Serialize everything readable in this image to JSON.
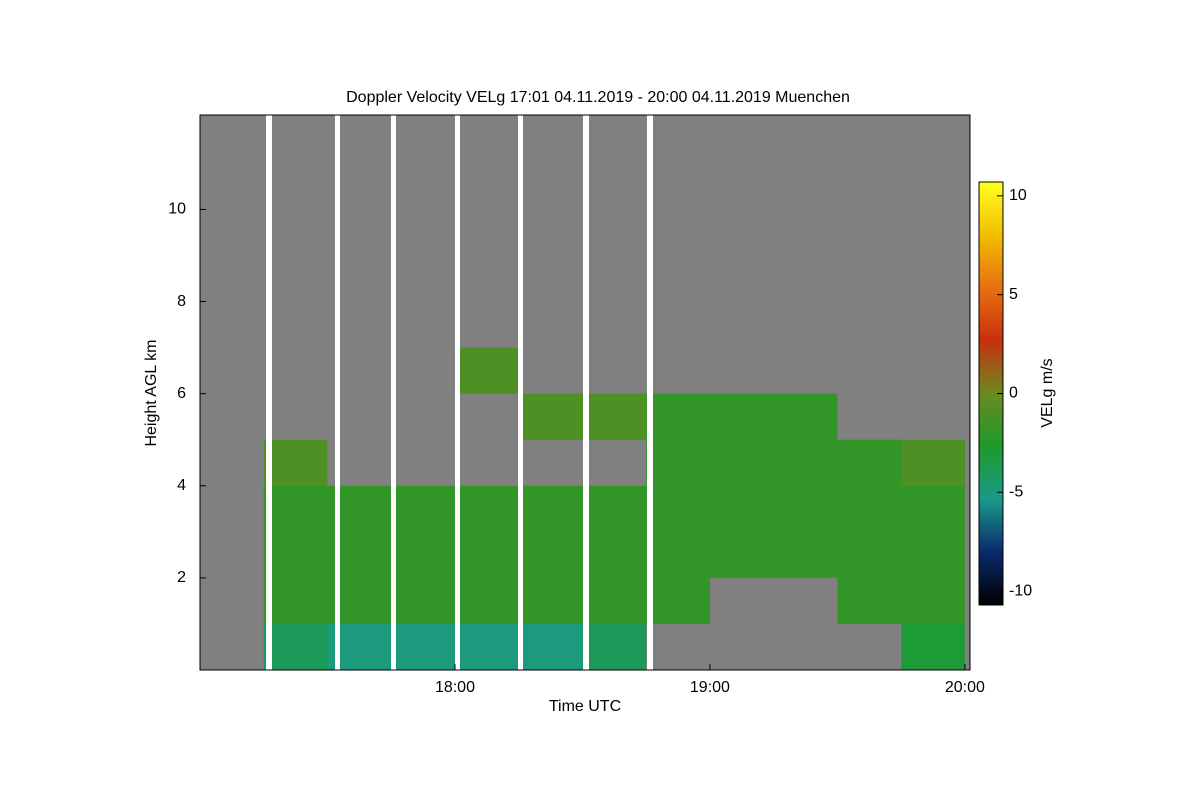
{
  "chart_data": {
    "type": "heatmap",
    "title": "Doppler Velocity VELg   17:01 04.11.2019 - 20:00 04.11.2019 Muenchen",
    "xlabel": "Time UTC",
    "ylabel": "Height AGL km",
    "colorbar_label": "VELg m/s",
    "xlim": [
      17.0,
      20.02
    ],
    "xticks": [
      {
        "value": 18,
        "label": "18:00"
      },
      {
        "value": 19,
        "label": "19:00"
      },
      {
        "value": 20,
        "label": "20:00"
      }
    ],
    "ylim": [
      0,
      12.05
    ],
    "yticks": [
      2,
      4,
      6,
      8,
      10
    ],
    "clim": [
      -10.7,
      10.7
    ],
    "cticks": [
      -10,
      -5,
      0,
      5,
      10
    ],
    "colors": [
      "#000000",
      "#0a2a6e",
      "#1a9a8a",
      "#1e9a2a",
      "#6a8a20",
      "#c83010",
      "#e87010",
      "#f0c000",
      "#ffff20"
    ],
    "missing_color": "#808080",
    "x_edges": [
      17.0,
      17.25,
      17.5,
      17.75,
      18.0,
      18.25,
      18.5,
      18.75,
      19.0,
      19.25,
      19.5,
      19.75,
      20.0
    ],
    "y_edges": [
      0,
      1,
      2,
      3,
      4,
      5,
      6,
      7,
      8,
      9,
      10,
      11,
      12
    ],
    "z": [
      [
        null,
        -4,
        -5,
        -5,
        -5,
        -5,
        -4,
        null,
        null,
        null,
        null,
        -3
      ],
      [
        null,
        -2,
        -2,
        -2,
        -2,
        -2,
        -2,
        -2,
        null,
        null,
        -2,
        -2
      ],
      [
        null,
        -2,
        -2,
        -2,
        -2,
        -2,
        -2,
        -2,
        -2,
        -2,
        -2,
        -2
      ],
      [
        null,
        -2,
        -2,
        -2,
        -2,
        -2,
        -2,
        -2,
        -2,
        -2,
        -2,
        -2
      ],
      [
        null,
        -1,
        null,
        null,
        null,
        null,
        null,
        -2,
        -2,
        -2,
        -2,
        -1
      ],
      [
        null,
        null,
        null,
        null,
        null,
        -1,
        -1,
        -2,
        -2,
        -2,
        null,
        null
      ],
      [
        null,
        null,
        null,
        null,
        -1,
        null,
        null,
        null,
        null,
        null,
        null,
        null
      ],
      [
        null,
        null,
        null,
        null,
        null,
        null,
        null,
        null,
        null,
        null,
        null,
        null
      ],
      [
        null,
        null,
        null,
        null,
        null,
        null,
        null,
        null,
        null,
        null,
        null,
        null
      ],
      [
        null,
        null,
        null,
        null,
        null,
        null,
        null,
        null,
        null,
        null,
        null,
        null
      ],
      [
        null,
        null,
        null,
        null,
        null,
        null,
        null,
        null,
        null,
        null,
        null,
        null
      ],
      [
        null,
        null,
        null,
        null,
        null,
        null,
        null,
        null,
        null,
        null,
        null,
        null
      ]
    ]
  }
}
